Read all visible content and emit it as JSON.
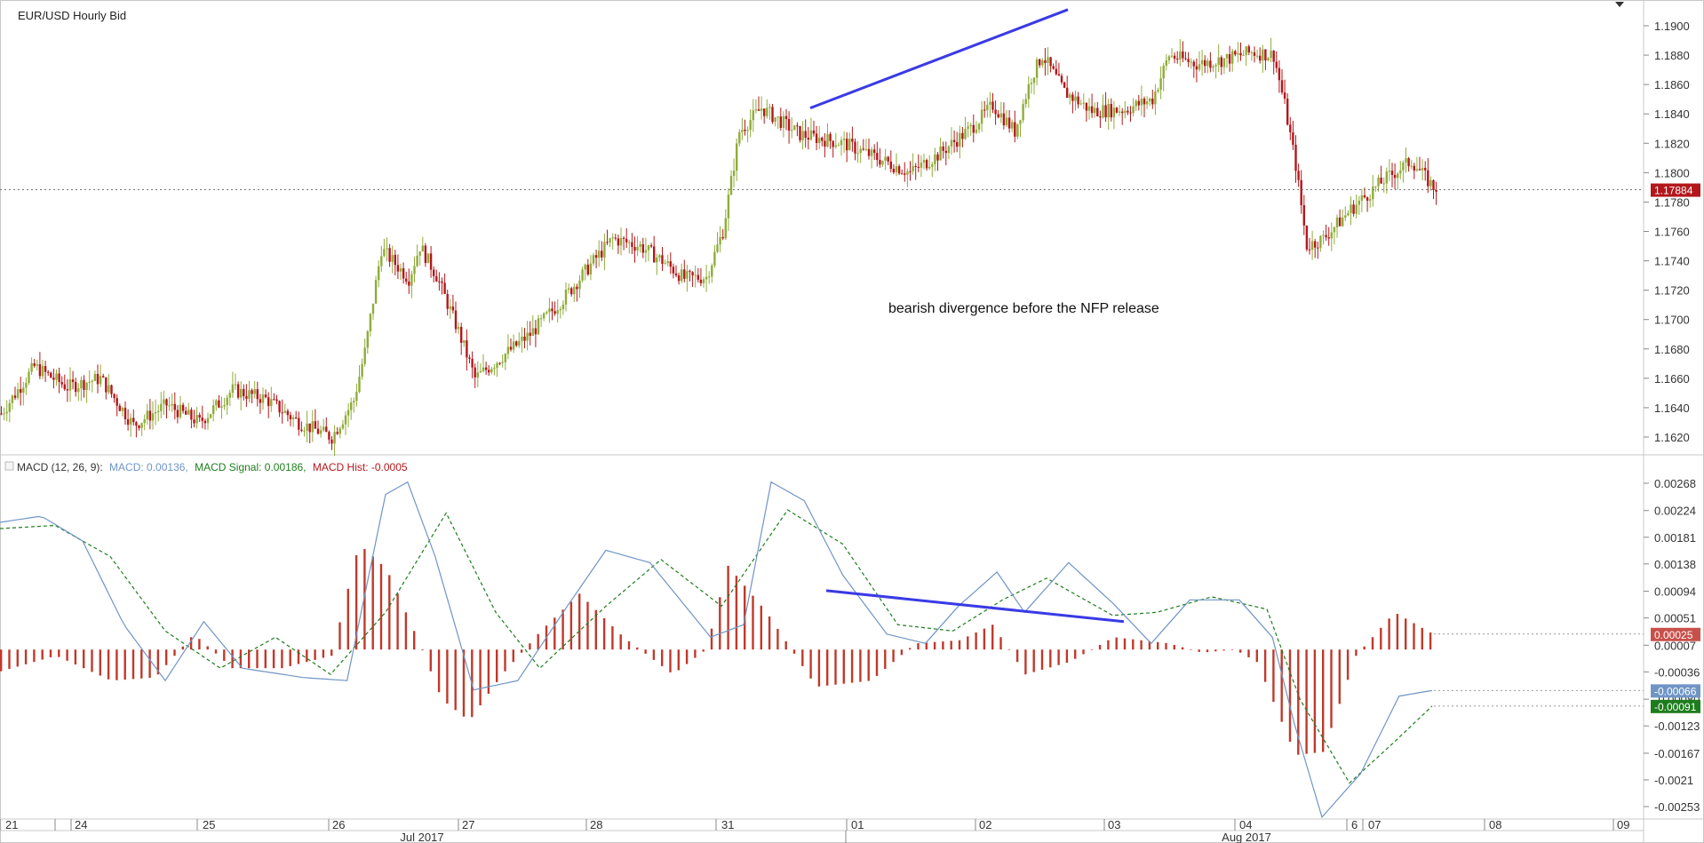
{
  "chart_title": "EUR/USD  Hourly Bid",
  "macd_legend": {
    "prefix": "MACD (12, 26, 9):",
    "macd_label": "MACD: 0.00136,",
    "signal_label": "MACD Signal: 0.00186,",
    "hist_label": "MACD Hist: -0.0005"
  },
  "annotation_text": "bearish divergence before the NFP release",
  "colors": {
    "bull": "#8fac3a",
    "bear": "#b3171b",
    "macd_line": "#6f95c6",
    "signal_line": "#1d7d1d",
    "hist": "#c0392b",
    "trendline": "#3a3ae6",
    "grid": "#e6e6e6",
    "price_badge": "#b3171b",
    "macd_badge": "#6f95c6",
    "signal_badge": "#1d7d1d",
    "hist_badge": "#c9504a"
  },
  "chart_data": [
    {
      "type": "candlestick",
      "title": "EUR/USD  Hourly Bid",
      "ylim": [
        1.1605,
        1.1915
      ],
      "yticks": [
        "1.1900",
        "1.1880",
        "1.1860",
        "1.1840",
        "1.1820",
        "1.1800",
        "1.1780",
        "1.1760",
        "1.1740",
        "1.1720",
        "1.1700",
        "1.1680",
        "1.1660",
        "1.1640",
        "1.1620"
      ],
      "current_price": "1.17884",
      "x_tick_labels": [
        "21",
        "24",
        "25",
        "26",
        "27",
        "28",
        "31",
        "01",
        "02",
        "03",
        "04",
        "6",
        "07",
        "08",
        "09"
      ],
      "month_labels": [
        "Jul 2017",
        "Aug 2017"
      ],
      "trendline": {
        "from_price": 1.1844,
        "to_price": 1.1911
      },
      "path_points": [
        [
          0,
          1.1636
        ],
        [
          12,
          1.1668
        ],
        [
          24,
          1.1654
        ],
        [
          36,
          1.166
        ],
        [
          48,
          1.1628
        ],
        [
          60,
          1.1642
        ],
        [
          72,
          1.163
        ],
        [
          84,
          1.1652
        ],
        [
          96,
          1.1646
        ],
        [
          108,
          1.163
        ],
        [
          120,
          1.162
        ],
        [
          128,
          1.1645
        ],
        [
          132,
          1.1678
        ],
        [
          138,
          1.1748
        ],
        [
          148,
          1.1728
        ],
        [
          152,
          1.175
        ],
        [
          158,
          1.173
        ],
        [
          166,
          1.1692
        ],
        [
          172,
          1.166
        ],
        [
          180,
          1.1672
        ],
        [
          192,
          1.169
        ],
        [
          204,
          1.1714
        ],
        [
          216,
          1.1742
        ],
        [
          222,
          1.1755
        ],
        [
          232,
          1.175
        ],
        [
          240,
          1.174
        ],
        [
          248,
          1.1728
        ],
        [
          256,
          1.1729
        ],
        [
          262,
          1.176
        ],
        [
          268,
          1.1828
        ],
        [
          276,
          1.1844
        ],
        [
          290,
          1.1826
        ],
        [
          306,
          1.182
        ],
        [
          318,
          1.181
        ],
        [
          330,
          1.18
        ],
        [
          340,
          1.1812
        ],
        [
          352,
          1.183
        ],
        [
          360,
          1.1846
        ],
        [
          368,
          1.1828
        ],
        [
          374,
          1.1865
        ],
        [
          378,
          1.188
        ],
        [
          386,
          1.1855
        ],
        [
          396,
          1.1842
        ],
        [
          408,
          1.1843
        ],
        [
          418,
          1.185
        ],
        [
          424,
          1.188
        ],
        [
          434,
          1.1874
        ],
        [
          444,
          1.1877
        ],
        [
          454,
          1.1882
        ],
        [
          462,
          1.188
        ],
        [
          466,
          1.1846
        ],
        [
          470,
          1.1805
        ],
        [
          474,
          1.175
        ],
        [
          480,
          1.1755
        ],
        [
          490,
          1.1775
        ],
        [
          502,
          1.1795
        ],
        [
          512,
          1.1808
        ],
        [
          520,
          1.179
        ]
      ]
    },
    {
      "type": "macd",
      "params": [
        12,
        26,
        9
      ],
      "macd": 0.00136,
      "signal": 0.00186,
      "hist": -0.0005,
      "ylim": [
        -0.00285,
        0.00285
      ],
      "yticks": [
        "0.00268",
        "0.00224",
        "0.00181",
        "0.00138",
        "0.00094",
        "0.00051",
        "0.00007",
        "-0.00036",
        "-0.00080",
        "-0.00123",
        "-0.00167",
        "-0.0021",
        "-0.00253"
      ],
      "badges": {
        "hist": "0.00025",
        "macd": "-0.00066",
        "signal": "-0.00091"
      },
      "divergence_line": {
        "from": 0.00095,
        "to": 0.00045
      },
      "macd_points": [
        [
          0,
          0.00205
        ],
        [
          15,
          0.00215
        ],
        [
          30,
          0.00175
        ],
        [
          45,
          0.0004
        ],
        [
          60,
          -0.0005
        ],
        [
          74,
          0.00045
        ],
        [
          88,
          -0.0003
        ],
        [
          110,
          -0.00045
        ],
        [
          126,
          -0.0005
        ],
        [
          140,
          0.0025
        ],
        [
          148,
          0.0027
        ],
        [
          158,
          0.0015
        ],
        [
          172,
          -0.00065
        ],
        [
          188,
          -0.0005
        ],
        [
          206,
          0.0007
        ],
        [
          220,
          0.0016
        ],
        [
          236,
          0.0014
        ],
        [
          258,
          0.0002
        ],
        [
          270,
          0.0004
        ],
        [
          280,
          0.0027
        ],
        [
          292,
          0.0024
        ],
        [
          306,
          0.0012
        ],
        [
          322,
          0.00025
        ],
        [
          336,
          0.0001
        ],
        [
          348,
          0.0007
        ],
        [
          362,
          0.00125
        ],
        [
          372,
          0.0006
        ],
        [
          388,
          0.0014
        ],
        [
          404,
          0.00075
        ],
        [
          418,
          0.0001
        ],
        [
          432,
          0.0008
        ],
        [
          450,
          0.0008
        ],
        [
          462,
          0.0002
        ],
        [
          470,
          -0.0012
        ],
        [
          480,
          -0.0027
        ],
        [
          494,
          -0.002
        ],
        [
          508,
          -0.00075
        ],
        [
          520,
          -0.00066
        ]
      ],
      "signal_points": [
        [
          0,
          0.00195
        ],
        [
          20,
          0.002
        ],
        [
          40,
          0.0015
        ],
        [
          60,
          0.0003
        ],
        [
          80,
          -0.0003
        ],
        [
          100,
          0.0002
        ],
        [
          120,
          -0.0004
        ],
        [
          140,
          0.0006
        ],
        [
          162,
          0.0022
        ],
        [
          180,
          0.0006
        ],
        [
          196,
          -0.0003
        ],
        [
          220,
          0.0007
        ],
        [
          240,
          0.00145
        ],
        [
          262,
          0.0007
        ],
        [
          286,
          0.00225
        ],
        [
          306,
          0.0017
        ],
        [
          326,
          0.0004
        ],
        [
          346,
          0.0003
        ],
        [
          364,
          0.0008
        ],
        [
          380,
          0.00115
        ],
        [
          404,
          0.00055
        ],
        [
          420,
          0.0006
        ],
        [
          440,
          0.00085
        ],
        [
          460,
          0.00065
        ],
        [
          472,
          -0.0008
        ],
        [
          490,
          -0.00215
        ],
        [
          506,
          -0.0015
        ],
        [
          520,
          -0.00091
        ]
      ],
      "hist_points": [
        [
          0,
          -0.00035
        ],
        [
          20,
          -0.0001
        ],
        [
          40,
          -0.0005
        ],
        [
          56,
          -0.00045
        ],
        [
          70,
          0.00025
        ],
        [
          84,
          -0.0003
        ],
        [
          102,
          -0.0003
        ],
        [
          120,
          -0.0001
        ],
        [
          130,
          0.0017
        ],
        [
          140,
          0.0013
        ],
        [
          152,
          0.0001
        ],
        [
          160,
          -0.0008
        ],
        [
          170,
          -0.00115
        ],
        [
          182,
          -0.0004
        ],
        [
          196,
          0.0003
        ],
        [
          210,
          0.0009
        ],
        [
          226,
          0.0002
        ],
        [
          244,
          -0.0004
        ],
        [
          256,
          0.0
        ],
        [
          264,
          0.00135
        ],
        [
          278,
          0.0006
        ],
        [
          296,
          -0.0006
        ],
        [
          316,
          -0.0005
        ],
        [
          332,
          0.0001
        ],
        [
          348,
          0.00015
        ],
        [
          360,
          0.0004
        ],
        [
          372,
          -0.0004
        ],
        [
          388,
          -0.0002
        ],
        [
          404,
          0.0002
        ],
        [
          424,
          0.0001
        ],
        [
          436,
          -5e-05
        ],
        [
          448,
          0.0
        ],
        [
          456,
          -0.0002
        ],
        [
          470,
          -0.0017
        ],
        [
          480,
          -0.00165
        ],
        [
          492,
          -0.0001
        ],
        [
          506,
          0.0006
        ],
        [
          520,
          0.00025
        ]
      ]
    }
  ]
}
